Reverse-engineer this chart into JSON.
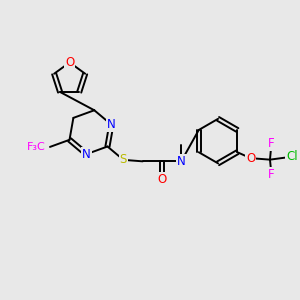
{
  "bg_color": "#e8e8e8",
  "bond_color": "#000000",
  "bond_width": 1.4,
  "atom_colors": {
    "O": "#ff0000",
    "N": "#0000ff",
    "S": "#bbbb00",
    "F": "#ff00ff",
    "Cl": "#00bb00",
    "C": "#000000"
  },
  "font_size": 8.5,
  "fig_size": [
    3.0,
    3.0
  ],
  "dpi": 100
}
